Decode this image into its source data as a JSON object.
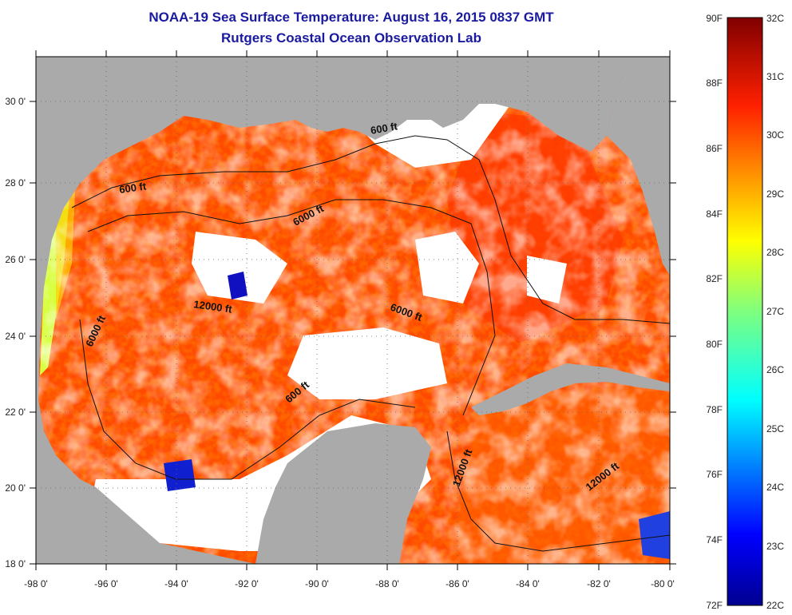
{
  "header": {
    "title": "NOAA-19 Sea Surface Temperature:  August 16, 2015 0837 GMT",
    "subtitle": "Rutgers Coastal Ocean Observation Lab"
  },
  "map": {
    "region": "Gulf of Mexico",
    "lon_range": [
      -98,
      -80
    ],
    "lat_range": [
      18,
      31
    ],
    "x_tick_labels": [
      "-98 0'",
      "-96 0'",
      "-94 0'",
      "-92 0'",
      "-90 0'",
      "-88 0'",
      "-86 0'",
      "-84 0'",
      "-82 0'",
      "-80 0'"
    ],
    "y_tick_labels": [
      "18 0'",
      "20 0'",
      "22 0'",
      "24 0'",
      "26 0'",
      "28 0'",
      "30 0'"
    ],
    "contour_labels": [
      "600 ft",
      "600 ft",
      "6000 ft",
      "12000 ft",
      "6000 ft",
      "6000 ft",
      "600 ft",
      "12000 ft",
      "12000 ft"
    ],
    "colors": {
      "land": "#aaaaaa",
      "cloud": "#ffffff"
    }
  },
  "colorbar": {
    "fahrenheit_labels": [
      "90F",
      "88F",
      "86F",
      "84F",
      "82F",
      "80F",
      "78F",
      "76F",
      "74F",
      "72F"
    ],
    "celsius_labels": [
      "32C",
      "31C",
      "30C",
      "29C",
      "28C",
      "27C",
      "26C",
      "25C",
      "24C",
      "23C",
      "22C"
    ],
    "range_c": [
      22,
      32
    ],
    "range_f": [
      72,
      90
    ]
  }
}
